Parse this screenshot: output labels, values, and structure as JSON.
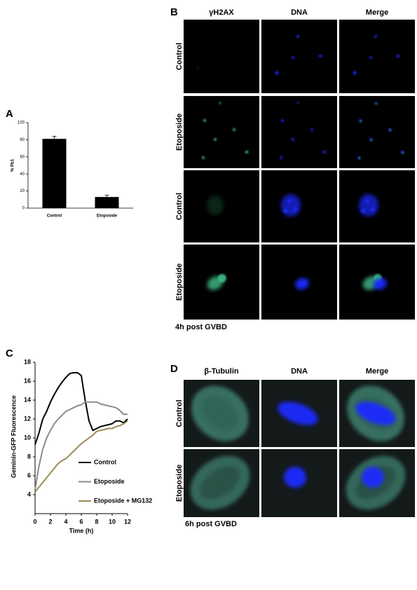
{
  "chart_data": [
    {
      "type": "bar",
      "panel_label": "A",
      "y_label": "% Pb1",
      "categories": [
        "Control",
        "Etoposide"
      ],
      "values": [
        81,
        13
      ],
      "errors": [
        3,
        2
      ],
      "color": "#000000",
      "ylim": [
        0,
        100
      ],
      "yticks": [
        0,
        20,
        40,
        60,
        80,
        100
      ]
    },
    {
      "type": "line",
      "panel_label": "C",
      "x_label": "Time (h)",
      "y_label": "Geminin-GFP Fluorescence",
      "x": [
        0,
        0.5,
        1,
        1.5,
        2,
        2.5,
        3,
        3.5,
        4,
        4.5,
        5,
        5.5,
        6,
        6.5,
        7,
        7.5,
        8,
        8.5,
        9,
        9.5,
        10,
        10.5,
        11,
        11.5,
        12
      ],
      "series": [
        {
          "name": "Control",
          "color": "#000000",
          "values": [
            9.3,
            10.5,
            12.0,
            12.8,
            13.8,
            14.6,
            15.3,
            15.9,
            16.4,
            16.8,
            16.9,
            16.9,
            16.6,
            14.0,
            11.8,
            10.8,
            11.0,
            11.2,
            11.3,
            11.4,
            11.5,
            11.8,
            11.8,
            11.6,
            12.0
          ]
        },
        {
          "name": "Etoposide",
          "color": "#8c8c8c",
          "values": [
            4.5,
            7.0,
            8.8,
            10.0,
            10.8,
            11.5,
            12.0,
            12.4,
            12.8,
            13.0,
            13.2,
            13.4,
            13.5,
            13.8,
            13.8,
            13.8,
            13.8,
            13.6,
            13.5,
            13.4,
            13.3,
            13.2,
            12.9,
            12.5,
            12.5
          ]
        },
        {
          "name": "Etoposide + MG132",
          "color": "#9c8a58",
          "values": [
            4.3,
            4.8,
            5.3,
            5.8,
            6.3,
            6.8,
            7.3,
            7.6,
            7.8,
            8.2,
            8.6,
            9.0,
            9.4,
            9.7,
            10.0,
            10.3,
            10.7,
            10.8,
            10.9,
            11.0,
            11.0,
            11.2,
            11.3,
            11.5,
            11.8
          ]
        }
      ],
      "xlim": [
        0,
        12
      ],
      "xticks": [
        0,
        2,
        4,
        6,
        8,
        10,
        12
      ],
      "ylim": [
        2,
        18
      ],
      "yticks": [
        4,
        6,
        8,
        10,
        12,
        14,
        16,
        18
      ]
    }
  ],
  "panel_b": {
    "label": "B",
    "columns": [
      "γH2AX",
      "DNA",
      "Merge"
    ],
    "rows": [
      "Control",
      "Etoposide",
      "Control",
      "Etoposide"
    ],
    "caption": "4h post GVBD"
  },
  "panel_d": {
    "label": "D",
    "columns": [
      "β-Tubulin",
      "DNA",
      "Merge"
    ],
    "rows": [
      "Control",
      "Etoposide"
    ],
    "caption": "6h post GVBD"
  }
}
